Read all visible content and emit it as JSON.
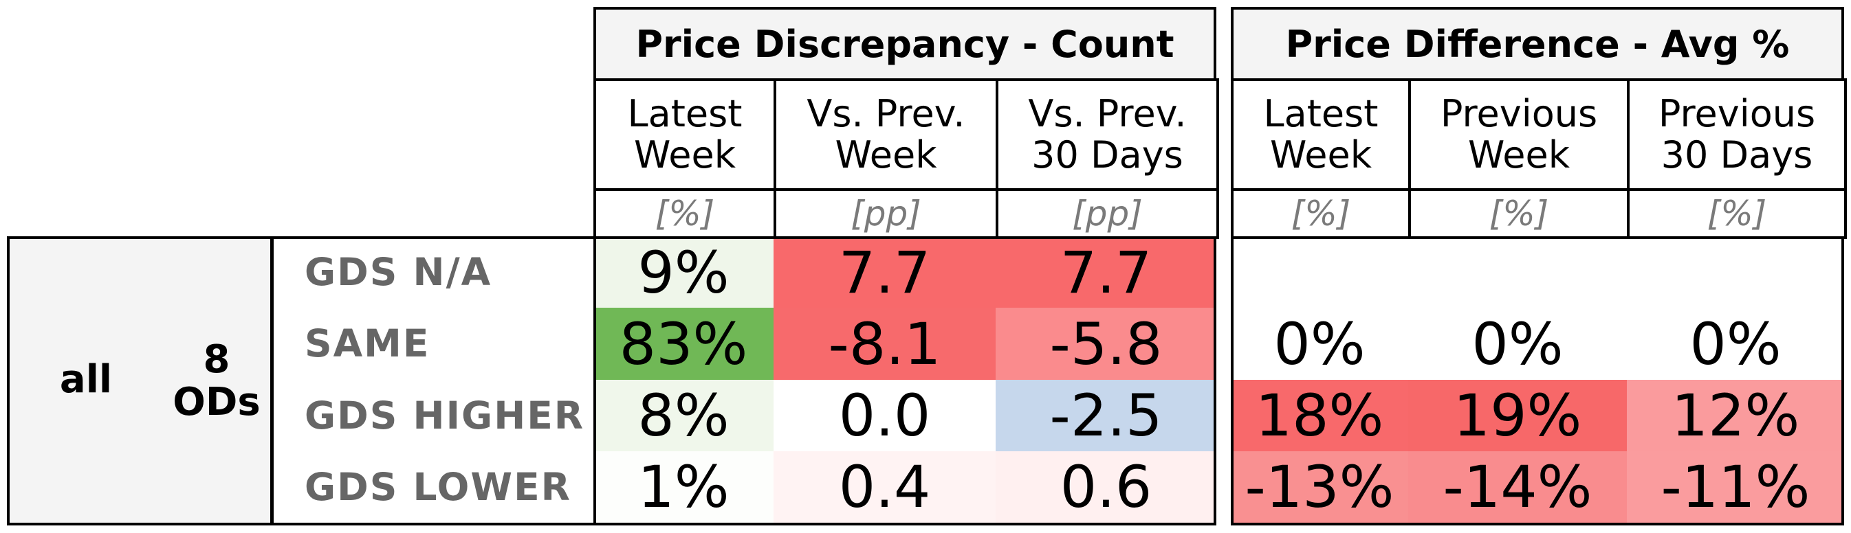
{
  "chart_data": {
    "type": "table",
    "groups": [
      {
        "title": "Price Discrepancy - Count",
        "columns": [
          {
            "label": "Latest\nWeek",
            "unit": "[%]"
          },
          {
            "label": "Vs. Prev.\nWeek",
            "unit": "[pp]"
          },
          {
            "label": "Vs. Prev.\n30 Days",
            "unit": "[pp]"
          }
        ]
      },
      {
        "title": "Price Difference - Avg %",
        "columns": [
          {
            "label": "Latest\nWeek",
            "unit": "[%]"
          },
          {
            "label": "Previous\nWeek",
            "unit": "[%]"
          },
          {
            "label": "Previous\n30 Days",
            "unit": "[%]"
          }
        ]
      }
    ],
    "stub": {
      "segment": "all",
      "ods": "8\nODs"
    },
    "rows": [
      "GDS N/A",
      "SAME",
      "GDS HIGHER",
      "GDS LOWER"
    ],
    "cells": [
      [
        "9%",
        "7.7",
        "7.7",
        "",
        "",
        ""
      ],
      [
        "83%",
        "-8.1",
        "-5.8",
        "0%",
        "0%",
        "0%"
      ],
      [
        "8%",
        "0.0",
        "-2.5",
        "18%",
        "19%",
        "12%"
      ],
      [
        "1%",
        "0.4",
        "0.6",
        "-13%",
        "-14%",
        "-11%"
      ]
    ],
    "values": [
      [
        9,
        7.7,
        7.7,
        null,
        null,
        null
      ],
      [
        83,
        -8.1,
        -5.8,
        0,
        0,
        0
      ],
      [
        8,
        0.0,
        -2.5,
        18,
        19,
        12
      ],
      [
        1,
        0.4,
        0.6,
        -13,
        -14,
        -11
      ]
    ],
    "cell_colors": [
      [
        "#eff6ea",
        "#f8696b",
        "#f8696b",
        "#ffffff",
        "#ffffff",
        "#ffffff"
      ],
      [
        "#70b856",
        "#f76a6c",
        "#fa8b8d",
        "#ffffff",
        "#ffffff",
        "#ffffff"
      ],
      [
        "#f0f7eb",
        "#ffffff",
        "#c6d7ec",
        "#f8696b",
        "#f76869",
        "#fa9b9d"
      ],
      [
        "#fdfefc",
        "#fff3f3",
        "#fff0f0",
        "#f99091",
        "#f98c8e",
        "#fa9c9e"
      ]
    ]
  }
}
